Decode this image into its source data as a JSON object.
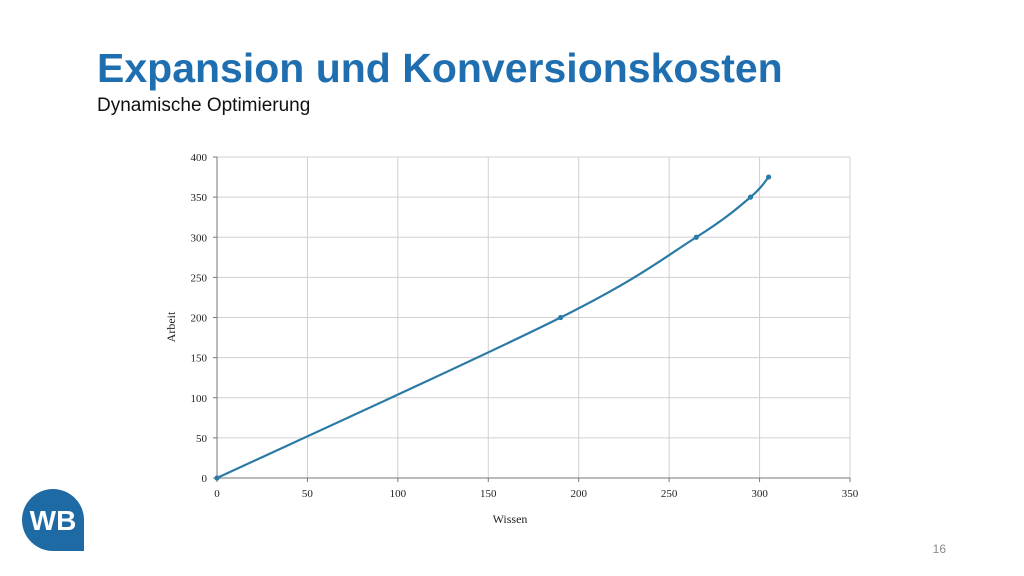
{
  "slide": {
    "title": "Expansion und Konversionskosten",
    "subtitle": "Dynamische Optimierung",
    "page_number": "16",
    "logo_text": "WB",
    "accent_color": "#1f6fb0",
    "logo_color": "#1e6aa5"
  },
  "chart_data": {
    "type": "line",
    "xlabel": "Wissen",
    "ylabel": "Arbeit",
    "xlim": [
      0,
      350
    ],
    "ylim": [
      0,
      400
    ],
    "xticks": [
      0,
      50,
      100,
      150,
      200,
      250,
      300,
      350
    ],
    "yticks": [
      0,
      50,
      100,
      150,
      200,
      250,
      300,
      350,
      400
    ],
    "grid": true,
    "series": [
      {
        "color": "#2a7aa6",
        "points": [
          [
            0,
            0
          ],
          [
            190,
            200
          ],
          [
            265,
            300
          ],
          [
            295,
            350
          ],
          [
            305,
            375
          ]
        ]
      }
    ]
  }
}
